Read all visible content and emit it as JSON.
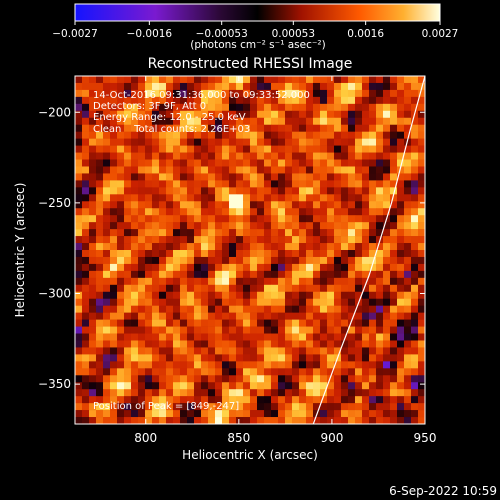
{
  "chart_data": {
    "type": "heatmap",
    "title": "Reconstructed RHESSI Image",
    "xlabel": "Heliocentric X (arcsec)",
    "ylabel": "Heliocentric Y (arcsec)",
    "xlim": [
      762,
      950
    ],
    "ylim": [
      -372,
      -180
    ],
    "xticks": [
      800,
      850,
      900,
      950
    ],
    "xtick_labels": [
      "800",
      "850",
      "900",
      "950"
    ],
    "yticks": [
      -200,
      -250,
      -300,
      -350
    ],
    "ytick_labels": [
      "−200",
      "−250",
      "−300",
      "−350"
    ],
    "colorbar": {
      "range": [
        -0.0027,
        0.0027
      ],
      "ticks": [
        -0.0027,
        -0.0016,
        -0.00053,
        0.00053,
        0.0016,
        0.0027
      ],
      "tick_labels": [
        "−0.0027",
        "−0.0016",
        "−0.00053",
        "0.00053",
        "0.0016",
        "0.0027"
      ],
      "units_label": "(photons cm⁻² s⁻¹ asec⁻²)",
      "colormap": [
        "#1414ff",
        "#6a1ad0",
        "#5a1470",
        "#120008",
        "#8a0e00",
        "#cc2200",
        "#ee5000",
        "#ff9a1e",
        "#ffd040",
        "#ffffd8"
      ]
    },
    "annotations": {
      "time_range": "14-Oct-2016 09:31:36.000 to 09:33:52.000",
      "detectors": "Detectors: 3F 9F, Att 0",
      "energy": "Energy Range: 12.0 - 25.0 keV",
      "clean": "Clean    Total counts: 2.26E+03",
      "peak": "Position of Peak = [849,-247]"
    },
    "peak": {
      "x": 849,
      "y": -247
    },
    "limb_curve": [
      [
        890,
        -372
      ],
      [
        905,
        -330
      ],
      [
        920,
        -290
      ],
      [
        932,
        -250
      ],
      [
        942,
        -210
      ],
      [
        950,
        -180
      ]
    ],
    "timestamp": "6-Sep-2022 10:59"
  }
}
